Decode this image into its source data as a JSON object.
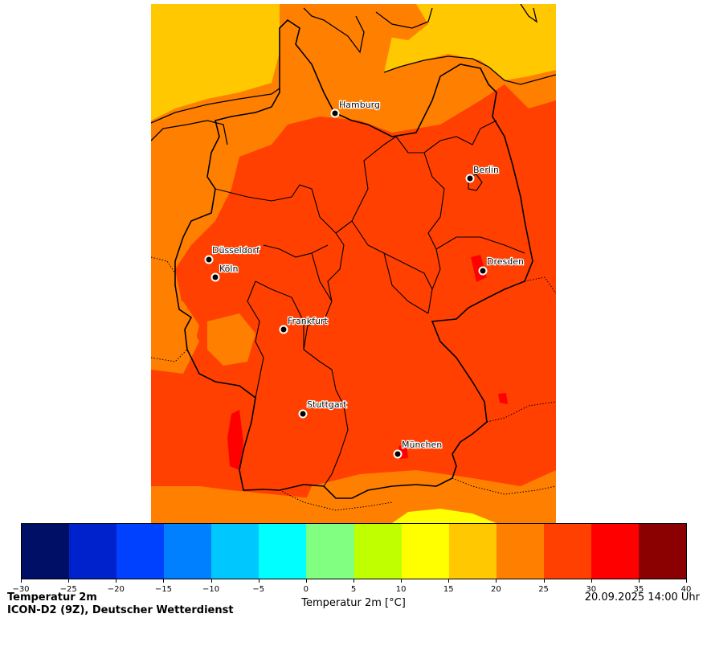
{
  "map": {
    "cities": [
      {
        "name": "Hamburg"
      },
      {
        "name": "Berlin"
      },
      {
        "name": "Düsseldorf"
      },
      {
        "name": "Köln"
      },
      {
        "name": "Dresden"
      },
      {
        "name": "Frankfurt"
      },
      {
        "name": "Stuttgart"
      },
      {
        "name": "München"
      }
    ],
    "colors": {
      "sea_15_20": "#FFC800",
      "land_20_25": "#FF8000",
      "land_25_30": "#FF4000",
      "hot_30_35": "#FF0000",
      "cool_10_15": "#FFFF00",
      "borders": "#000000"
    }
  },
  "colorbar": {
    "label": "Temperatur 2m [°C]",
    "ticks": [
      "−30",
      "−25",
      "−20",
      "−15",
      "−10",
      "−5",
      "0",
      "5",
      "10",
      "15",
      "20",
      "25",
      "30",
      "35",
      "40"
    ],
    "colors": [
      "#000F66",
      "#0022CC",
      "#0040FF",
      "#0080FF",
      "#00C8FF",
      "#00FFFF",
      "#80FF80",
      "#C0FF00",
      "#FFFF00",
      "#FFC800",
      "#FF8000",
      "#FF4000",
      "#FF0000",
      "#8B0000"
    ]
  },
  "footer": {
    "title": "Temperatur 2m",
    "model": "ICON-D2 (9Z), Deutscher Wetterdienst",
    "timestamp": "20.09.2025 14:00 Uhr"
  }
}
